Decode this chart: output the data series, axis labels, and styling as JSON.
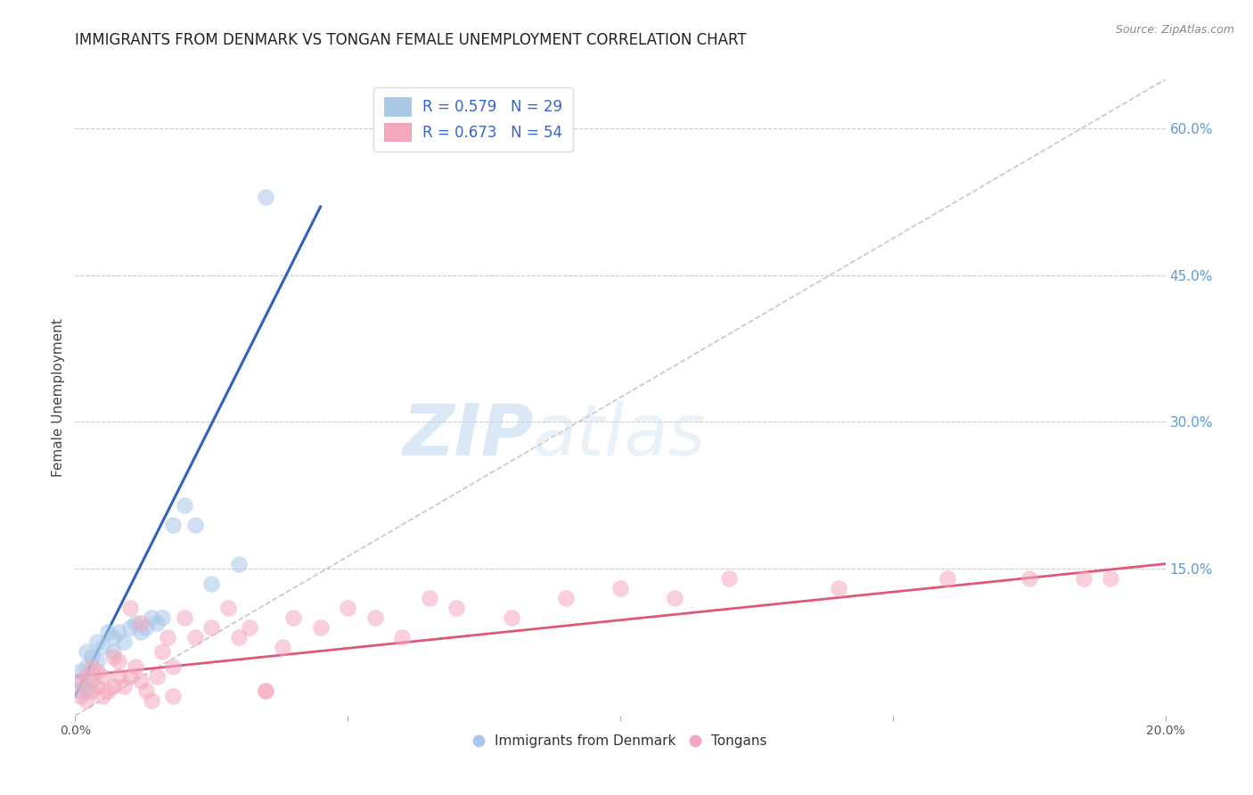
{
  "title": "IMMIGRANTS FROM DENMARK VS TONGAN FEMALE UNEMPLOYMENT CORRELATION CHART",
  "source": "Source: ZipAtlas.com",
  "ylabel": "Female Unemployment",
  "xlim": [
    0.0,
    0.2
  ],
  "ylim": [
    0.0,
    0.65
  ],
  "xticks": [
    0.0,
    0.05,
    0.1,
    0.15,
    0.2
  ],
  "xtick_labels": [
    "0.0%",
    "",
    "",
    "",
    "20.0%"
  ],
  "yticks_right": [
    0.15,
    0.3,
    0.45,
    0.6
  ],
  "ytick_labels_right": [
    "15.0%",
    "30.0%",
    "45.0%",
    "60.0%"
  ],
  "legend_label1": "Immigrants from Denmark",
  "legend_label2": "Tongans",
  "blue_scatter_color": "#a8c8e8",
  "pink_scatter_color": "#f4a8bc",
  "blue_line_color": "#3060c0",
  "pink_line_color": "#e05878",
  "diagonal_color": "#b8b8c8",
  "background_color": "#ffffff",
  "blue_points_x": [
    0.001,
    0.001,
    0.001,
    0.002,
    0.002,
    0.002,
    0.003,
    0.003,
    0.004,
    0.004,
    0.005,
    0.006,
    0.007,
    0.007,
    0.008,
    0.009,
    0.01,
    0.011,
    0.012,
    0.013,
    0.014,
    0.015,
    0.016,
    0.018,
    0.02,
    0.022,
    0.025,
    0.03,
    0.035
  ],
  "blue_points_y": [
    0.025,
    0.035,
    0.045,
    0.025,
    0.05,
    0.065,
    0.035,
    0.06,
    0.055,
    0.075,
    0.07,
    0.085,
    0.065,
    0.08,
    0.085,
    0.075,
    0.09,
    0.095,
    0.085,
    0.09,
    0.1,
    0.095,
    0.1,
    0.195,
    0.215,
    0.195,
    0.135,
    0.155,
    0.53
  ],
  "pink_points_x": [
    0.001,
    0.001,
    0.002,
    0.002,
    0.003,
    0.003,
    0.004,
    0.004,
    0.005,
    0.005,
    0.006,
    0.007,
    0.007,
    0.008,
    0.008,
    0.009,
    0.01,
    0.011,
    0.012,
    0.013,
    0.014,
    0.015,
    0.016,
    0.017,
    0.018,
    0.02,
    0.022,
    0.025,
    0.028,
    0.03,
    0.032,
    0.035,
    0.038,
    0.04,
    0.045,
    0.05,
    0.055,
    0.06,
    0.065,
    0.07,
    0.08,
    0.09,
    0.1,
    0.11,
    0.12,
    0.14,
    0.16,
    0.175,
    0.185,
    0.19,
    0.01,
    0.012,
    0.018,
    0.035
  ],
  "pink_points_y": [
    0.02,
    0.035,
    0.015,
    0.04,
    0.025,
    0.05,
    0.03,
    0.045,
    0.02,
    0.04,
    0.025,
    0.03,
    0.06,
    0.04,
    0.055,
    0.03,
    0.04,
    0.05,
    0.035,
    0.025,
    0.015,
    0.04,
    0.065,
    0.08,
    0.05,
    0.1,
    0.08,
    0.09,
    0.11,
    0.08,
    0.09,
    0.025,
    0.07,
    0.1,
    0.09,
    0.11,
    0.1,
    0.08,
    0.12,
    0.11,
    0.1,
    0.12,
    0.13,
    0.12,
    0.14,
    0.13,
    0.14,
    0.14,
    0.14,
    0.14,
    0.11,
    0.095,
    0.02,
    0.025
  ],
  "blue_line_x": [
    0.0,
    0.045
  ],
  "blue_line_y": [
    0.02,
    0.52
  ],
  "pink_line_x": [
    0.0,
    0.2
  ],
  "pink_line_y": [
    0.04,
    0.155
  ],
  "diag_line_x": [
    0.0,
    0.2
  ],
  "diag_line_y": [
    0.0,
    0.65
  ],
  "watermark_zip": "ZIP",
  "watermark_atlas": "atlas",
  "title_fontsize": 12,
  "source_fontsize": 9,
  "ylabel_fontsize": 11
}
